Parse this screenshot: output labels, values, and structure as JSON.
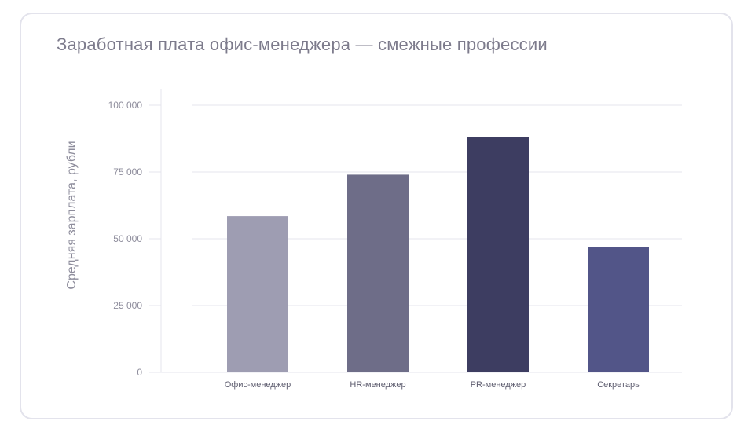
{
  "chart_data": {
    "type": "bar",
    "title": "Заработная плата офис-менеджера — смежные профессии",
    "ylabel": "Средняя зарплата, рубли",
    "xlabel": "",
    "categories": [
      "Офис-менеджер",
      "HR-менеджер",
      "PR-менеджер",
      "Секретарь"
    ],
    "values": [
      58500,
      74000,
      88200,
      46800
    ],
    "colors": [
      "#9e9db2",
      "#6e6d88",
      "#3d3d61",
      "#525588"
    ],
    "ylim": [
      0,
      100000
    ],
    "yticks": [
      0,
      25000,
      50000,
      75000,
      100000
    ],
    "ytick_labels": [
      "0",
      "25 000",
      "50 000",
      "75 000",
      "100 000"
    ],
    "grid": true
  }
}
